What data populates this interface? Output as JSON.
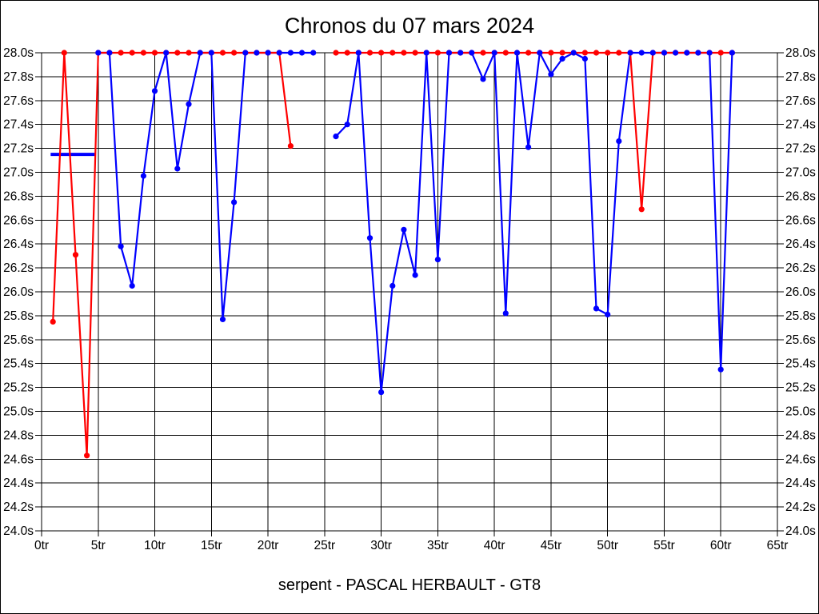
{
  "title": "Chronos du 07 mars 2024",
  "caption": "serpent - PASCAL HERBAULT - GT8",
  "colors": {
    "series_red": "#ff0000",
    "series_blue": "#0000ff",
    "grid": "#000000",
    "background": "#ffffff",
    "text": "#000000"
  },
  "chart_data": {
    "type": "line",
    "title": "Chronos du 07 mars 2024",
    "subtitle": "serpent - PASCAL HERBAULT - GT8",
    "x_unit": "tr",
    "y_unit": "s",
    "xlim": [
      0,
      65
    ],
    "ylim": [
      24.0,
      28.0
    ],
    "grid": true,
    "legend": "none",
    "x_ticks": [
      {
        "lap": 0,
        "label": "0tr"
      },
      {
        "lap": 5,
        "label": "5tr"
      },
      {
        "lap": 10,
        "label": "10tr"
      },
      {
        "lap": 15,
        "label": "15tr"
      },
      {
        "lap": 20,
        "label": "20tr"
      },
      {
        "lap": 25,
        "label": "25tr"
      },
      {
        "lap": 30,
        "label": "30tr"
      },
      {
        "lap": 35,
        "label": "35tr"
      },
      {
        "lap": 40,
        "label": "40tr"
      },
      {
        "lap": 45,
        "label": "45tr"
      },
      {
        "lap": 50,
        "label": "50tr"
      },
      {
        "lap": 55,
        "label": "55tr"
      },
      {
        "lap": 60,
        "label": "60tr"
      },
      {
        "lap": 65,
        "label": "65tr"
      }
    ],
    "y_ticks": [
      {
        "value": 28.0,
        "label": "28.0s"
      },
      {
        "value": 27.8,
        "label": "27.8s"
      },
      {
        "value": 27.6,
        "label": "27.6s"
      },
      {
        "value": 27.4,
        "label": "27.4s"
      },
      {
        "value": 27.2,
        "label": "27.2s"
      },
      {
        "value": 27.0,
        "label": "27.0s"
      },
      {
        "value": 26.8,
        "label": "26.8s"
      },
      {
        "value": 26.6,
        "label": "26.6s"
      },
      {
        "value": 26.4,
        "label": "26.4s"
      },
      {
        "value": 26.2,
        "label": "26.2s"
      },
      {
        "value": 26.0,
        "label": "26.0s"
      },
      {
        "value": 25.8,
        "label": "25.8s"
      },
      {
        "value": 25.6,
        "label": "25.6s"
      },
      {
        "value": 25.4,
        "label": "25.4s"
      },
      {
        "value": 25.2,
        "label": "25.2s"
      },
      {
        "value": 25.0,
        "label": "25.0s"
      },
      {
        "value": 24.8,
        "label": "24.8s"
      },
      {
        "value": 24.6,
        "label": "24.6s"
      },
      {
        "value": 24.4,
        "label": "24.4s"
      },
      {
        "value": 24.2,
        "label": "24.2s"
      },
      {
        "value": 24.0,
        "label": "24.0s"
      }
    ],
    "clip_value": 28.0,
    "reference_segment": {
      "name": "blue-flat-segment",
      "y": 27.15,
      "x_start": 0.8,
      "x_end": 4.7,
      "color": "#0000ff"
    },
    "series": [
      {
        "name": "red",
        "color": "#ff0000",
        "points": [
          [
            1,
            25.75
          ],
          [
            2,
            28.0
          ],
          [
            3,
            26.31
          ],
          [
            4,
            24.63
          ],
          [
            5,
            28.0
          ],
          [
            6,
            28.0
          ],
          [
            7,
            28.0
          ],
          [
            8,
            28.0
          ],
          [
            9,
            28.0
          ],
          [
            10,
            28.0
          ],
          [
            11,
            28.0
          ],
          [
            12,
            28.0
          ],
          [
            13,
            28.0
          ],
          [
            14,
            28.0
          ],
          [
            15,
            28.0
          ],
          [
            16,
            28.0
          ],
          [
            17,
            28.0
          ],
          [
            18,
            28.0
          ],
          [
            19,
            28.0
          ],
          [
            20,
            28.0
          ],
          [
            21,
            28.0
          ],
          [
            22,
            27.22
          ],
          [
            26,
            28.0
          ],
          [
            27,
            28.0
          ],
          [
            28,
            28.0
          ],
          [
            29,
            28.0
          ],
          [
            30,
            28.0
          ],
          [
            31,
            28.0
          ],
          [
            32,
            28.0
          ],
          [
            33,
            28.0
          ],
          [
            34,
            28.0
          ],
          [
            35,
            28.0
          ],
          [
            36,
            28.0
          ],
          [
            37,
            28.0
          ],
          [
            38,
            28.0
          ],
          [
            39,
            28.0
          ],
          [
            40,
            28.0
          ],
          [
            41,
            28.0
          ],
          [
            42,
            28.0
          ],
          [
            43,
            28.0
          ],
          [
            44,
            28.0
          ],
          [
            45,
            28.0
          ],
          [
            46,
            28.0
          ],
          [
            47,
            28.0
          ],
          [
            48,
            28.0
          ],
          [
            49,
            28.0
          ],
          [
            50,
            28.0
          ],
          [
            51,
            28.0
          ],
          [
            52,
            28.0
          ],
          [
            53,
            26.69
          ],
          [
            54,
            28.0
          ],
          [
            55,
            28.0
          ],
          [
            56,
            28.0
          ],
          [
            57,
            28.0
          ],
          [
            58,
            28.0
          ],
          [
            59,
            28.0
          ],
          [
            60,
            28.0
          ],
          [
            61,
            28.0
          ]
        ]
      },
      {
        "name": "blue",
        "color": "#0000ff",
        "points": [
          [
            5,
            28.0
          ],
          [
            6,
            28.0
          ],
          [
            7,
            26.38
          ],
          [
            8,
            26.05
          ],
          [
            9,
            26.97
          ],
          [
            10,
            27.68
          ],
          [
            11,
            28.0
          ],
          [
            12,
            27.03
          ],
          [
            13,
            27.57
          ],
          [
            14,
            28.0
          ],
          [
            15,
            28.0
          ],
          [
            16,
            25.77
          ],
          [
            17,
            26.75
          ],
          [
            18,
            28.0
          ],
          [
            19,
            28.0
          ],
          [
            20,
            28.0
          ],
          [
            21,
            28.0
          ],
          [
            22,
            28.0
          ],
          [
            23,
            28.0
          ],
          [
            24,
            28.0
          ],
          [
            26,
            27.3
          ],
          [
            27,
            27.4
          ],
          [
            28,
            28.0
          ],
          [
            29,
            26.45
          ],
          [
            30,
            25.16
          ],
          [
            31,
            26.05
          ],
          [
            32,
            26.52
          ],
          [
            33,
            26.14
          ],
          [
            34,
            28.0
          ],
          [
            35,
            26.27
          ],
          [
            36,
            28.0
          ],
          [
            37,
            28.0
          ],
          [
            38,
            28.0
          ],
          [
            39,
            27.78
          ],
          [
            40,
            28.0
          ],
          [
            41,
            25.82
          ],
          [
            42,
            28.0
          ],
          [
            43,
            27.21
          ],
          [
            44,
            28.0
          ],
          [
            45,
            27.82
          ],
          [
            46,
            27.95
          ],
          [
            47,
            28.0
          ],
          [
            48,
            27.95
          ],
          [
            49,
            25.86
          ],
          [
            50,
            25.81
          ],
          [
            51,
            27.26
          ],
          [
            52,
            28.0
          ],
          [
            53,
            28.0
          ],
          [
            54,
            28.0
          ],
          [
            55,
            28.0
          ],
          [
            56,
            28.0
          ],
          [
            57,
            28.0
          ],
          [
            58,
            28.0
          ],
          [
            59,
            28.0
          ],
          [
            60,
            25.35
          ],
          [
            61,
            28.0
          ]
        ]
      }
    ]
  }
}
